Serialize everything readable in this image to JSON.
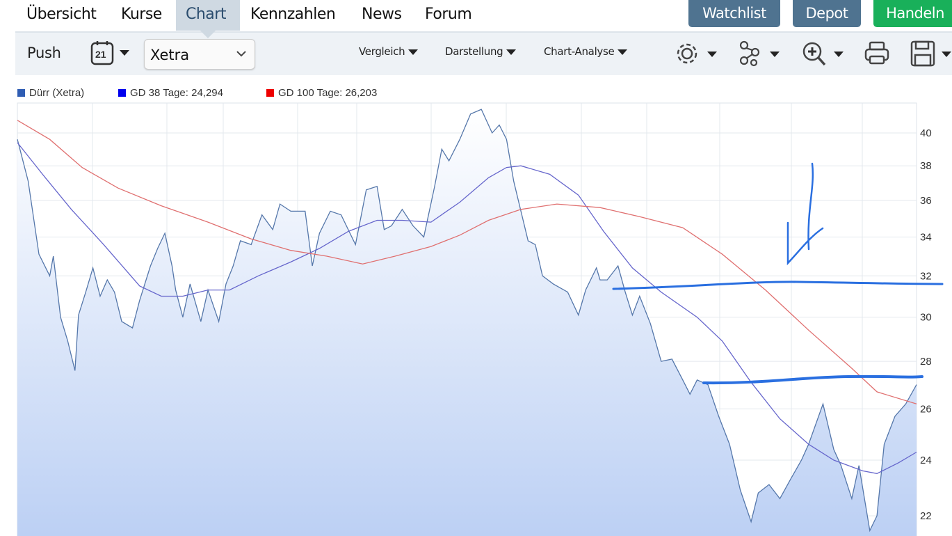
{
  "nav": {
    "tabs": [
      {
        "label": "Übersicht"
      },
      {
        "label": "Kurse"
      },
      {
        "label": "Chart",
        "active": true
      },
      {
        "label": "Kennzahlen"
      },
      {
        "label": "News"
      },
      {
        "label": "Forum"
      }
    ],
    "buttons": {
      "watchlist": "Watchlist",
      "depot": "Depot",
      "handeln": "Handeln"
    },
    "colors": {
      "watchlist": "#4f7390",
      "depot": "#4f7390",
      "handeln": "#19b05a"
    }
  },
  "toolbar": {
    "push": "Push",
    "calendar_day": "21",
    "exchange": "Xetra",
    "vergleich": "Vergleich",
    "darstellung": "Darstellung",
    "chart_analyse": "Chart-Analyse",
    "icons": [
      "gear-icon",
      "network-icon",
      "zoom-in-icon",
      "print-icon",
      "save-icon"
    ]
  },
  "legend": [
    {
      "label": "Dürr (Xetra)",
      "color": "#2f5db3"
    },
    {
      "label": "GD 38 Tage: 24,294",
      "color": "#0000ee"
    },
    {
      "label": "GD 100 Tage: 26,203",
      "color": "#ee0000"
    }
  ],
  "chart_data": {
    "type": "line",
    "title": "Dürr (Xetra)",
    "yscale": "log",
    "ylim": [
      21,
      42.5
    ],
    "yticks": [
      22,
      24,
      26,
      28,
      30,
      32,
      34,
      36,
      38,
      40
    ],
    "xlim": [
      0,
      250
    ],
    "grid": true,
    "legend_position": "top-left",
    "series": [
      {
        "name": "Dürr (Xetra)",
        "color": "#5577aa",
        "fill": true,
        "points": [
          [
            0,
            39.6
          ],
          [
            3,
            37.1
          ],
          [
            6,
            33.1
          ],
          [
            9,
            32.0
          ],
          [
            10,
            33.0
          ],
          [
            12,
            30.0
          ],
          [
            14,
            28.9
          ],
          [
            16,
            27.6
          ],
          [
            17,
            30.1
          ],
          [
            19,
            31.2
          ],
          [
            21,
            32.4
          ],
          [
            23,
            31.0
          ],
          [
            25,
            31.8
          ],
          [
            27,
            31.2
          ],
          [
            29,
            29.8
          ],
          [
            32,
            29.5
          ],
          [
            34,
            30.8
          ],
          [
            37,
            32.5
          ],
          [
            39,
            33.4
          ],
          [
            41,
            34.2
          ],
          [
            43,
            32.5
          ],
          [
            44,
            31.3
          ],
          [
            46,
            30.0
          ],
          [
            48,
            31.6
          ],
          [
            51,
            29.8
          ],
          [
            53,
            31.3
          ],
          [
            56,
            29.8
          ],
          [
            58,
            31.6
          ],
          [
            60,
            32.5
          ],
          [
            62,
            33.8
          ],
          [
            65,
            33.6
          ],
          [
            68,
            35.2
          ],
          [
            71,
            34.4
          ],
          [
            73,
            35.8
          ],
          [
            76,
            35.4
          ],
          [
            80,
            35.4
          ],
          [
            82,
            32.5
          ],
          [
            84,
            34.2
          ],
          [
            87,
            35.4
          ],
          [
            90,
            35.2
          ],
          [
            94,
            33.6
          ],
          [
            97,
            36.6
          ],
          [
            100,
            36.8
          ],
          [
            102,
            34.4
          ],
          [
            104,
            34.6
          ],
          [
            107,
            35.5
          ],
          [
            110,
            34.6
          ],
          [
            113,
            34.0
          ],
          [
            116,
            36.8
          ],
          [
            118,
            39.0
          ],
          [
            120,
            38.3
          ],
          [
            123,
            39.6
          ],
          [
            126,
            41.2
          ],
          [
            129,
            41.5
          ],
          [
            132,
            40.0
          ],
          [
            134,
            40.5
          ],
          [
            136,
            39.6
          ],
          [
            138,
            37.1
          ],
          [
            140,
            35.4
          ],
          [
            142,
            33.8
          ],
          [
            144,
            33.6
          ],
          [
            146,
            32.0
          ],
          [
            149,
            31.6
          ],
          [
            153,
            31.2
          ],
          [
            156,
            30.1
          ],
          [
            158,
            31.3
          ],
          [
            161,
            32.4
          ],
          [
            162,
            31.8
          ],
          [
            164,
            31.8
          ],
          [
            167,
            32.5
          ],
          [
            169,
            31.2
          ],
          [
            171,
            30.1
          ],
          [
            173,
            31.0
          ],
          [
            176,
            29.7
          ],
          [
            179,
            28.0
          ],
          [
            182,
            28.1
          ],
          [
            185,
            27.2
          ],
          [
            187,
            26.6
          ],
          [
            189,
            27.2
          ],
          [
            192,
            27.0
          ],
          [
            195,
            25.7
          ],
          [
            198,
            24.6
          ],
          [
            201,
            22.9
          ],
          [
            204,
            21.8
          ],
          [
            206,
            22.8
          ],
          [
            209,
            23.1
          ],
          [
            212,
            22.6
          ],
          [
            215,
            23.3
          ],
          [
            218,
            24.0
          ],
          [
            220,
            24.6
          ],
          [
            224,
            26.2
          ],
          [
            227,
            24.4
          ],
          [
            229,
            23.8
          ],
          [
            232,
            22.6
          ],
          [
            234,
            23.8
          ],
          [
            237,
            21.5
          ],
          [
            239,
            22.0
          ],
          [
            241,
            24.6
          ],
          [
            244,
            25.7
          ],
          [
            247,
            26.2
          ],
          [
            250,
            27.0
          ]
        ]
      },
      {
        "name": "GD 38 Tage",
        "color": "#6666cc",
        "points": [
          [
            0,
            39.4
          ],
          [
            7,
            37.5
          ],
          [
            15,
            35.5
          ],
          [
            24,
            33.6
          ],
          [
            34,
            31.5
          ],
          [
            40,
            31.0
          ],
          [
            46,
            31.0
          ],
          [
            53,
            31.3
          ],
          [
            59,
            31.3
          ],
          [
            67,
            32.0
          ],
          [
            76,
            32.7
          ],
          [
            84,
            33.4
          ],
          [
            92,
            34.3
          ],
          [
            100,
            34.9
          ],
          [
            107,
            34.9
          ],
          [
            115,
            34.8
          ],
          [
            123,
            35.9
          ],
          [
            131,
            37.3
          ],
          [
            136,
            37.9
          ],
          [
            140,
            38.0
          ],
          [
            148,
            37.5
          ],
          [
            156,
            36.3
          ],
          [
            163,
            34.3
          ],
          [
            171,
            32.4
          ],
          [
            179,
            31.2
          ],
          [
            189,
            30.0
          ],
          [
            196,
            28.9
          ],
          [
            204,
            27.1
          ],
          [
            212,
            25.6
          ],
          [
            220,
            24.6
          ],
          [
            227,
            24.0
          ],
          [
            235,
            23.6
          ],
          [
            239,
            23.5
          ],
          [
            245,
            23.9
          ],
          [
            250,
            24.3
          ]
        ]
      },
      {
        "name": "GD 100 Tage",
        "color": "#e07070",
        "points": [
          [
            0,
            40.8
          ],
          [
            9,
            39.6
          ],
          [
            18,
            37.9
          ],
          [
            28,
            36.7
          ],
          [
            40,
            35.7
          ],
          [
            53,
            34.8
          ],
          [
            65,
            33.9
          ],
          [
            76,
            33.3
          ],
          [
            86,
            33.0
          ],
          [
            96,
            32.6
          ],
          [
            105,
            33.0
          ],
          [
            115,
            33.5
          ],
          [
            123,
            34.1
          ],
          [
            131,
            34.9
          ],
          [
            140,
            35.5
          ],
          [
            150,
            35.8
          ],
          [
            162,
            35.6
          ],
          [
            173,
            35.1
          ],
          [
            185,
            34.5
          ],
          [
            196,
            33.1
          ],
          [
            208,
            31.3
          ],
          [
            220,
            29.4
          ],
          [
            232,
            27.7
          ],
          [
            239,
            26.7
          ],
          [
            250,
            26.2
          ]
        ]
      }
    ]
  }
}
